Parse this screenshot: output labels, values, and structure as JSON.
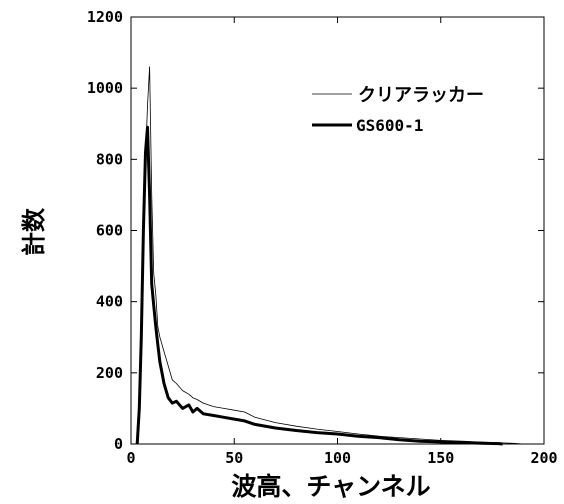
{
  "chart_data": {
    "type": "line",
    "xlabel": "波高、チャンネル",
    "ylabel": "計数",
    "xlim": [
      0,
      200
    ],
    "ylim": [
      0,
      1200
    ],
    "x_ticks": [
      0,
      50,
      100,
      150,
      200
    ],
    "x_tick_labels": [
      "0",
      "50",
      "100",
      "150",
      "200"
    ],
    "y_ticks": [
      0,
      200,
      400,
      600,
      800,
      1000,
      1200
    ],
    "y_tick_labels": [
      "0",
      "200",
      "400",
      "600",
      "800",
      "1000",
      "1200"
    ],
    "grid": false,
    "legend_position": "top-right",
    "series": [
      {
        "name": "クリアラッカー",
        "line_style": "thin",
        "x": [
          3,
          4,
          5,
          6,
          7,
          8,
          9,
          10,
          11,
          12,
          13,
          14,
          16,
          18,
          20,
          22,
          25,
          28,
          30,
          32,
          35,
          40,
          45,
          50,
          55,
          60,
          70,
          80,
          90,
          100,
          110,
          120,
          130,
          140,
          150,
          160,
          170,
          180,
          185,
          190
        ],
        "y": [
          0,
          80,
          250,
          500,
          800,
          950,
          1060,
          700,
          480,
          420,
          330,
          300,
          260,
          220,
          180,
          170,
          150,
          140,
          130,
          125,
          115,
          105,
          100,
          95,
          90,
          75,
          60,
          50,
          42,
          35,
          28,
          22,
          18,
          14,
          10,
          8,
          5,
          3,
          2,
          0
        ]
      },
      {
        "name": "GS600-1",
        "line_style": "thick",
        "x": [
          3,
          4,
          5,
          6,
          7,
          8,
          9,
          10,
          11,
          12,
          13,
          14,
          15,
          16,
          18,
          20,
          22,
          25,
          28,
          30,
          32,
          35,
          40,
          45,
          50,
          55,
          60,
          70,
          80,
          90,
          100,
          110,
          120,
          130,
          140,
          150,
          160,
          170,
          178,
          180
        ],
        "y": [
          0,
          100,
          300,
          600,
          820,
          890,
          700,
          450,
          390,
          330,
          280,
          230,
          200,
          170,
          130,
          115,
          120,
          100,
          110,
          90,
          100,
          85,
          80,
          75,
          70,
          65,
          55,
          45,
          38,
          32,
          28,
          22,
          18,
          12,
          8,
          6,
          4,
          2,
          1,
          0
        ]
      }
    ]
  }
}
